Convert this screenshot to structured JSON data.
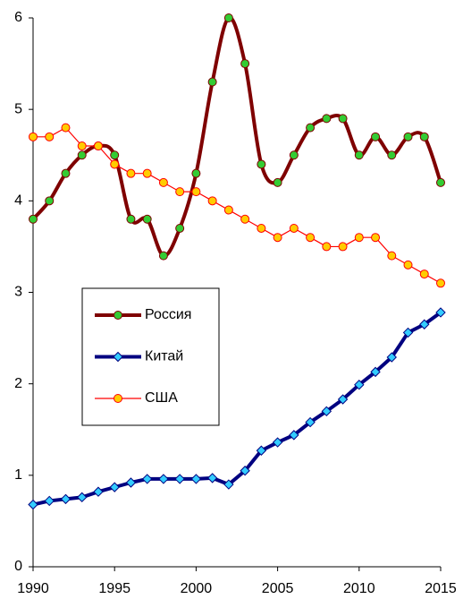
{
  "chart_data": {
    "type": "line",
    "x": [
      1990,
      1991,
      1992,
      1993,
      1994,
      1995,
      1996,
      1997,
      1998,
      1999,
      2000,
      2001,
      2002,
      2003,
      2004,
      2005,
      2006,
      2007,
      2008,
      2009,
      2010,
      2011,
      2012,
      2013,
      2014,
      2015
    ],
    "xlim": [
      1990,
      2015
    ],
    "xticks": [
      1990,
      1995,
      2000,
      2005,
      2010,
      2015
    ],
    "ylim": [
      0,
      6
    ],
    "yticks": [
      0,
      1,
      2,
      3,
      4,
      5,
      6
    ],
    "grid": false,
    "legend": "lower-left",
    "series": [
      {
        "name": "Россия",
        "color": "#7f0000",
        "marker": "circle",
        "marker_color": "#33cc33",
        "line_width": 4,
        "smooth": true,
        "values": [
          3.8,
          4.0,
          4.3,
          4.5,
          4.6,
          4.5,
          3.8,
          3.8,
          3.4,
          3.7,
          4.3,
          5.3,
          6.0,
          5.5,
          4.4,
          4.2,
          4.5,
          4.8,
          4.9,
          4.9,
          4.5,
          4.7,
          4.5,
          4.7,
          4.7,
          4.2
        ]
      },
      {
        "name": "Китай",
        "color": "#000080",
        "marker": "diamond",
        "marker_color": "#33ccff",
        "line_width": 4,
        "smooth": false,
        "values": [
          0.68,
          0.72,
          0.74,
          0.76,
          0.82,
          0.87,
          0.92,
          0.96,
          0.96,
          0.96,
          0.96,
          0.97,
          0.9,
          1.05,
          1.27,
          1.36,
          1.44,
          1.58,
          1.7,
          1.83,
          1.99,
          2.13,
          2.29,
          2.56,
          2.65,
          2.78
        ]
      },
      {
        "name": "США",
        "color": "#ff0000",
        "marker": "circle",
        "marker_color": "#ffcc00",
        "line_width": 1.2,
        "smooth": false,
        "values": [
          4.7,
          4.7,
          4.8,
          4.6,
          4.6,
          4.4,
          4.3,
          4.3,
          4.2,
          4.1,
          4.1,
          4.0,
          3.9,
          3.8,
          3.7,
          3.6,
          3.7,
          3.6,
          3.5,
          3.5,
          3.6,
          3.6,
          3.4,
          3.3,
          3.2,
          3.1
        ]
      }
    ]
  }
}
